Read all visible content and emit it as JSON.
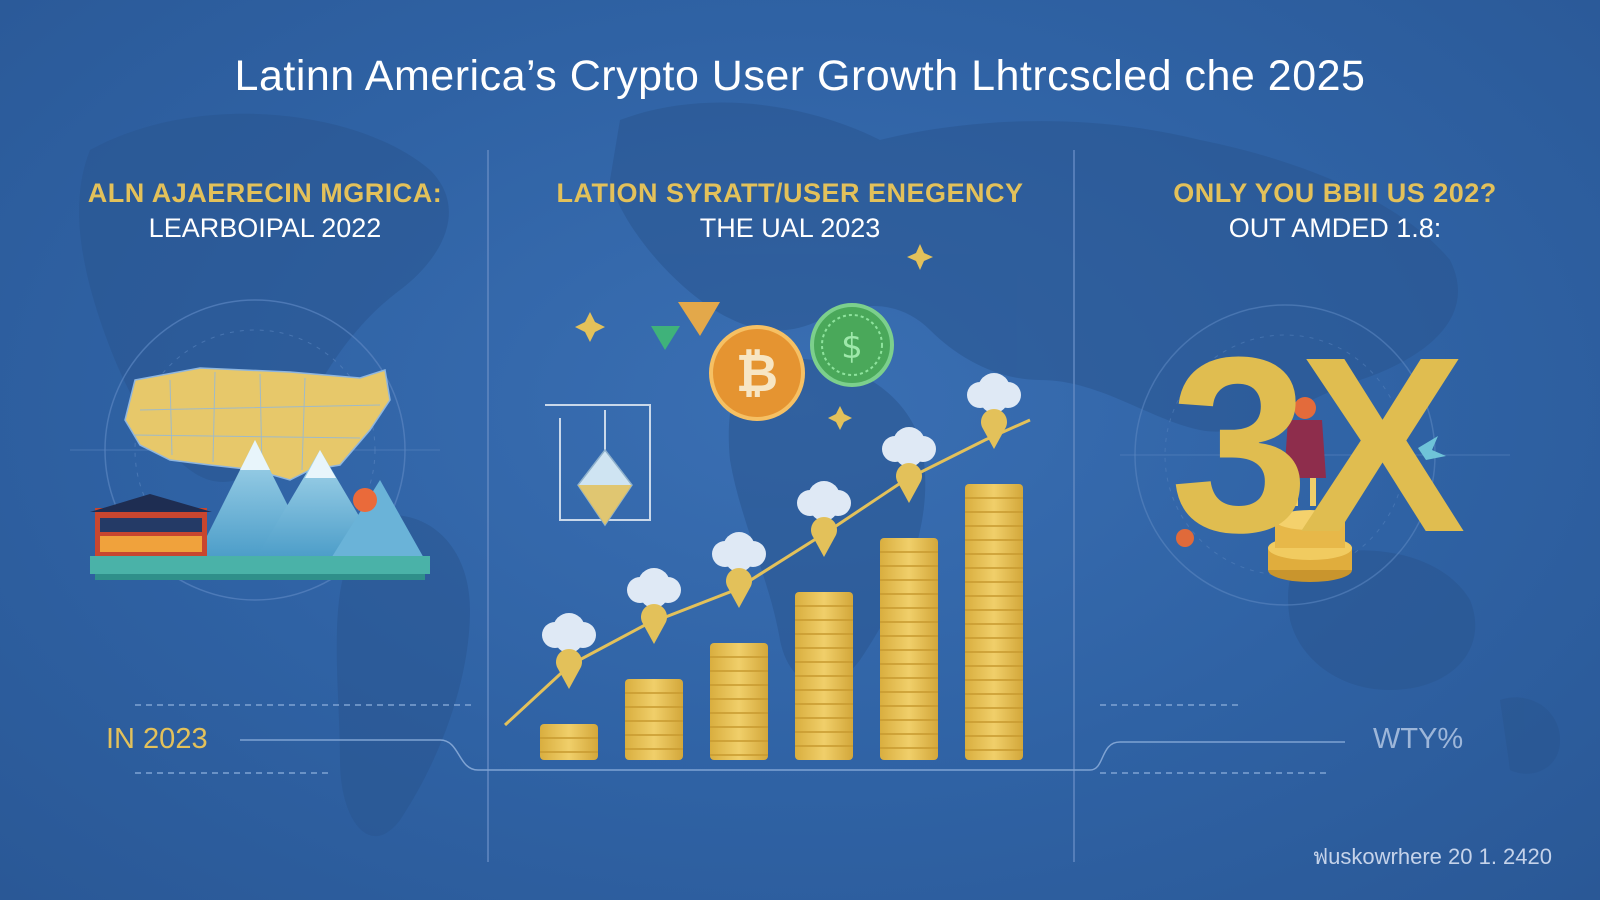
{
  "title": "Latinn America’s Crypto User Growth Lhtrcscled che 2025",
  "panels": [
    {
      "heading": "ALN AJAERECIN MGRICA:",
      "subheading": "LEARBOIPAL  2022"
    },
    {
      "heading": "LATION SYRATT/USER ENEGENCY",
      "subheading": "THE UAL 2023"
    },
    {
      "heading": "ONLY YOU BBII US 202?",
      "subheading": "OUT AMDED 1.8:"
    }
  ],
  "left_label": "IN 2023",
  "right_label": "WTY%",
  "big_figure": "3X",
  "footer": "ฟuskowrhere 20 1. 2420",
  "colors": {
    "background": "#2f62a4",
    "gold": "#e3c15a",
    "coin": "#e8be4f",
    "text": "#ffffff"
  },
  "icons": [
    "bitcoin-icon",
    "dollar-coin-icon",
    "diamond-gem-icon",
    "cloud-icon",
    "sparkle-icon"
  ],
  "growth_bars": [
    0.12,
    0.27,
    0.39,
    0.56,
    0.74,
    0.92
  ]
}
